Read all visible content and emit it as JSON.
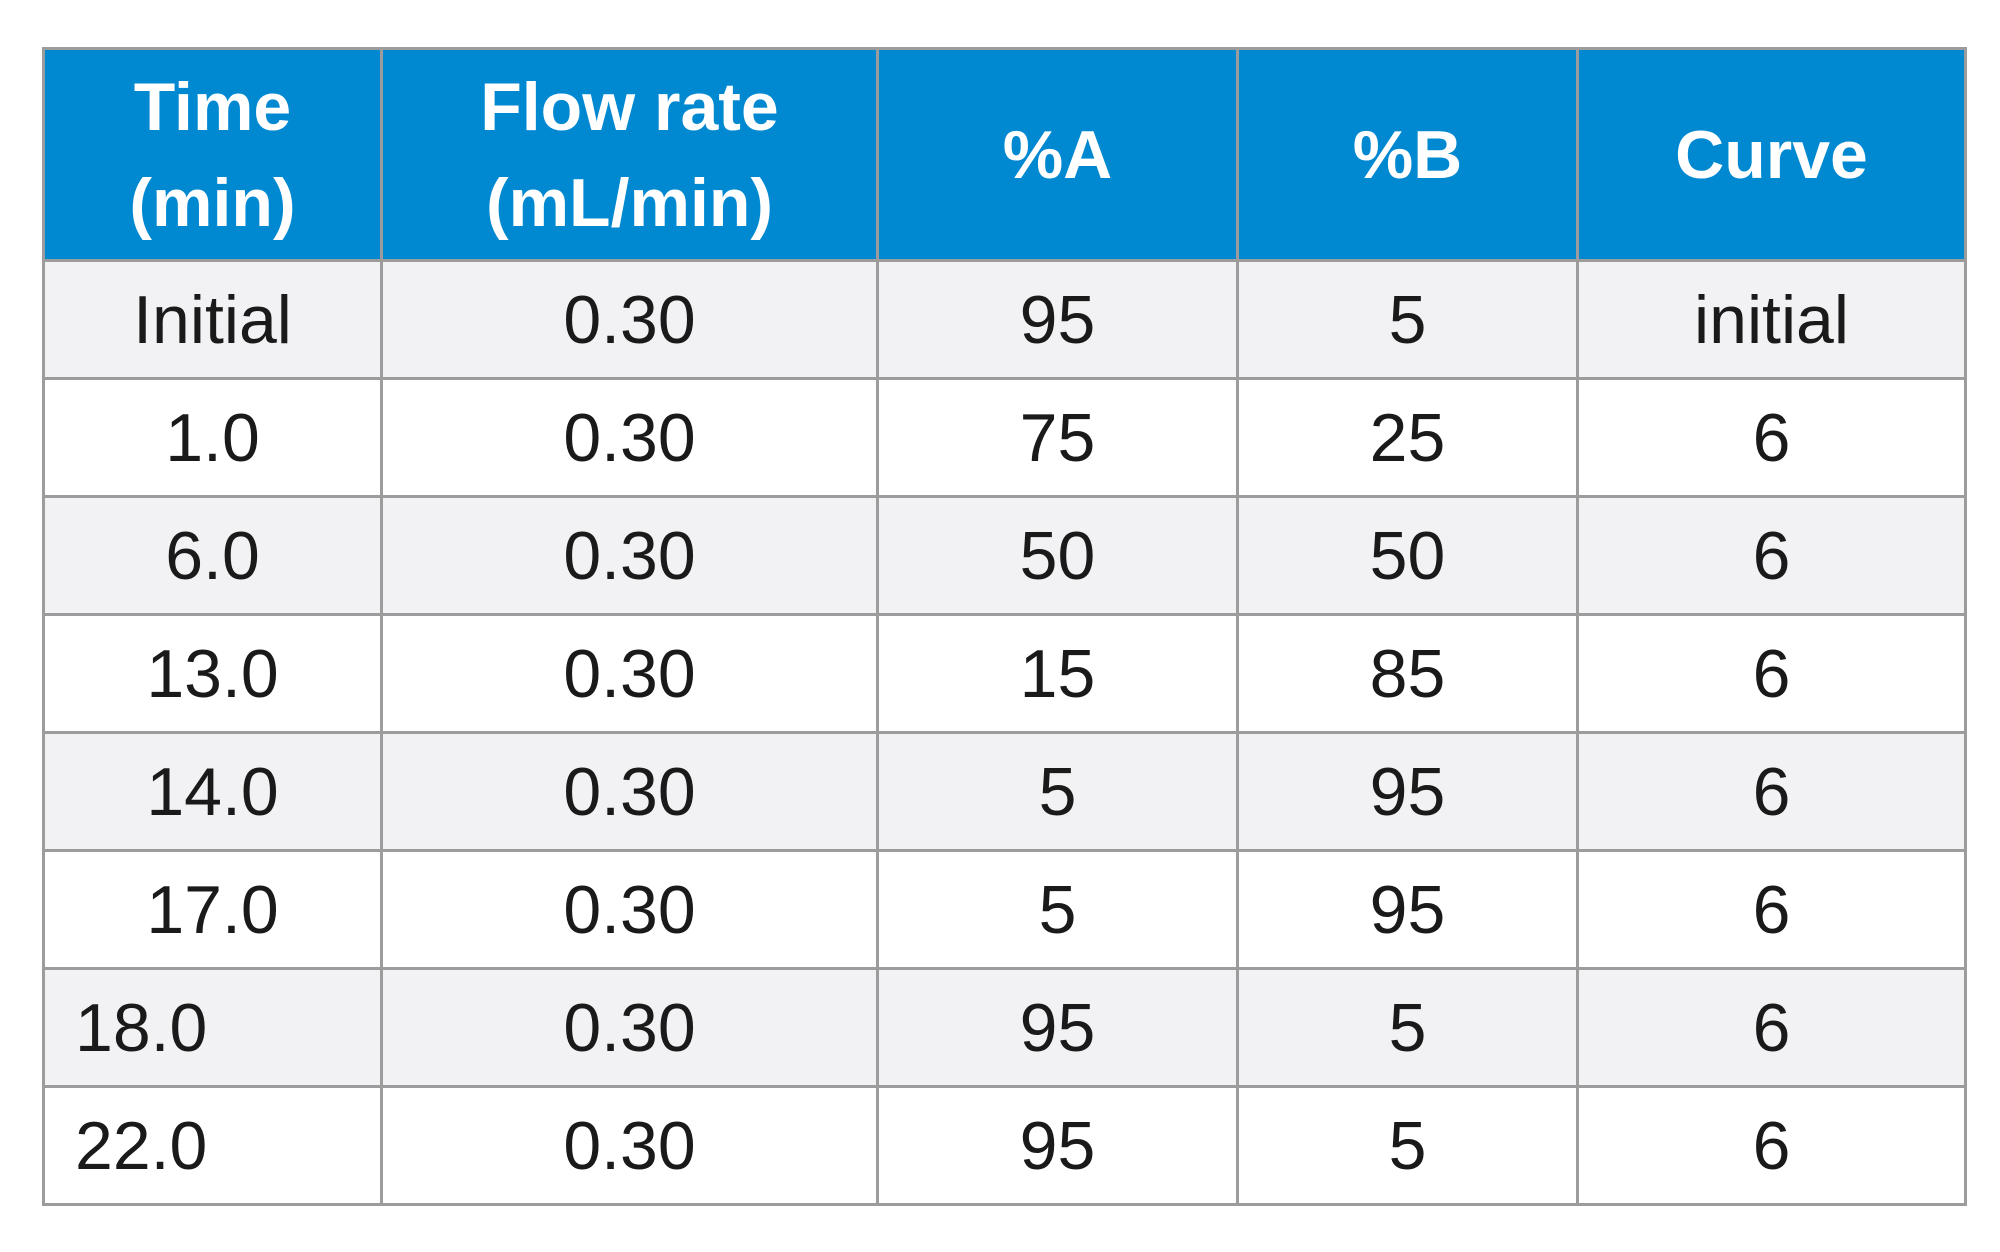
{
  "table": {
    "headers": [
      {
        "line1": "Time",
        "line2": "(min)"
      },
      {
        "line1": "Flow rate",
        "line2": "(mL/min)"
      },
      {
        "line1": "%A",
        "line2": ""
      },
      {
        "line1": "%B",
        "line2": ""
      },
      {
        "line1": "Curve",
        "line2": ""
      }
    ],
    "rows": [
      {
        "time": "Initial",
        "flow": "0.30",
        "a": "95",
        "b": "5",
        "curve": "initial"
      },
      {
        "time": "1.0",
        "flow": "0.30",
        "a": "75",
        "b": "25",
        "curve": "6"
      },
      {
        "time": "6.0",
        "flow": "0.30",
        "a": "50",
        "b": "50",
        "curve": "6"
      },
      {
        "time": "13.0",
        "flow": "0.30",
        "a": "15",
        "b": "85",
        "curve": "6"
      },
      {
        "time": "14.0",
        "flow": "0.30",
        "a": "5",
        "b": "95",
        "curve": "6"
      },
      {
        "time": "17.0",
        "flow": "0.30",
        "a": "5",
        "b": "95",
        "curve": "6"
      },
      {
        "time": "18.0",
        "flow": "0.30",
        "a": "95",
        "b": "5",
        "curve": "6"
      },
      {
        "time": "22.0",
        "flow": "0.30",
        "a": "95",
        "b": "5",
        "curve": "6"
      }
    ],
    "colors": {
      "header_background": "#0088d1",
      "header_text": "#ffffff",
      "row_alt_background": "#f2f2f4",
      "grid_line": "#9c9c9c"
    }
  }
}
